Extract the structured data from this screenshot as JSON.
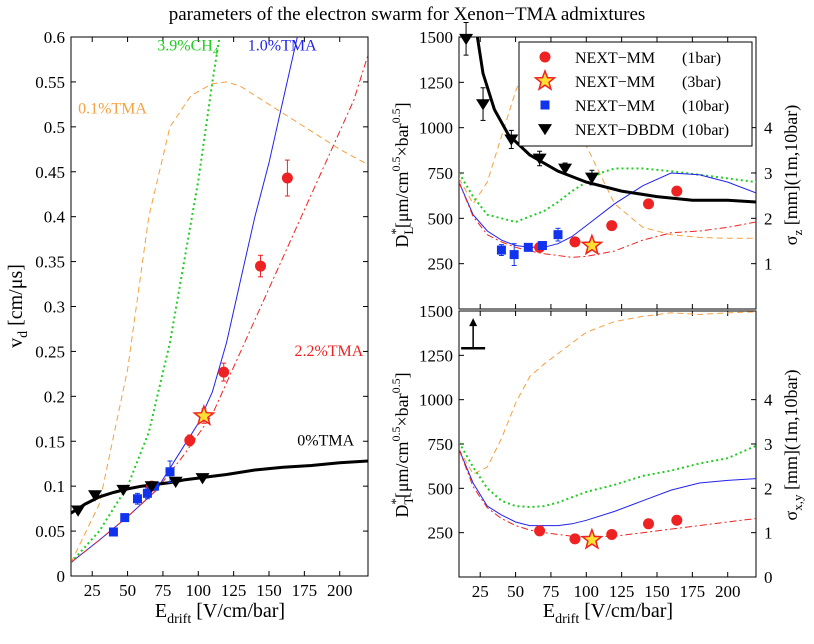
{
  "title": "parameters of the electron swarm for Xenon−TMA admixtures",
  "colors": {
    "tma01": "#f5a142",
    "ch4": "#22cc22",
    "tma10": "#2222ee",
    "tma22": "#ee2222",
    "tma0": "#000000",
    "mm1bar": "#ee2222",
    "mm3bar": "#ee2222",
    "mm3bar_fill": "#ffe033",
    "mm10bar": "#1133ee",
    "dbdm": "#000000"
  },
  "chart_data": [
    {
      "type": "line",
      "id": "vd",
      "xlabel": "E",
      "xlabel_sub": "drift",
      "xlabel_tail": " [V/cm/bar]",
      "ylabel": "v",
      "ylabel_sub": "d",
      "ylabel_tail": " [cm/μs]",
      "xlim": [
        10,
        220
      ],
      "ylim": [
        0,
        0.6
      ],
      "xticks": [
        25,
        50,
        75,
        100,
        125,
        150,
        175,
        200
      ],
      "xtick_labels": [
        "25",
        "50",
        "75",
        "100",
        "125",
        "150",
        "175",
        "200"
      ],
      "yticks": [
        0,
        0.05,
        0.1,
        0.15,
        0.2,
        0.25,
        0.3,
        0.35,
        0.4,
        0.45,
        0.5,
        0.55,
        0.6
      ],
      "ytick_labels": [
        "0",
        "0.05",
        "0.1",
        "0.15",
        "0.2",
        "0.25",
        "0.3",
        "0.35",
        "0.4",
        "0.45",
        "0.5",
        "0.55",
        "0.6"
      ],
      "series": [
        {
          "name": "0.1%TMA",
          "color_key": "tma01",
          "style": "dashed",
          "width": 1,
          "x": [
            10,
            30,
            50,
            65,
            80,
            95,
            110,
            120,
            130,
            150,
            175,
            200,
            220
          ],
          "y": [
            0.015,
            0.08,
            0.23,
            0.4,
            0.5,
            0.535,
            0.548,
            0.55,
            0.545,
            0.525,
            0.5,
            0.475,
            0.458
          ]
        },
        {
          "name": "3.9%CH4",
          "color_key": "ch4",
          "style": "dotted",
          "width": 2,
          "x": [
            10,
            30,
            50,
            65,
            80,
            90,
            100,
            110,
            115
          ],
          "y": [
            0.015,
            0.05,
            0.1,
            0.16,
            0.26,
            0.35,
            0.44,
            0.55,
            0.6
          ]
        },
        {
          "name": "1.0%TMA",
          "color_key": "tma10",
          "style": "solid",
          "width": 1,
          "x": [
            10,
            30,
            50,
            70,
            90,
            100,
            110,
            120,
            130,
            140,
            150,
            160,
            170
          ],
          "y": [
            0.015,
            0.04,
            0.066,
            0.095,
            0.145,
            0.17,
            0.205,
            0.26,
            0.33,
            0.4,
            0.46,
            0.53,
            0.6
          ]
        },
        {
          "name": "2.2%TMA",
          "color_key": "tma22",
          "style": "dashdot",
          "width": 1,
          "x": [
            10,
            30,
            50,
            70,
            90,
            110,
            130,
            150,
            170,
            190,
            210,
            220
          ],
          "y": [
            0.015,
            0.04,
            0.066,
            0.095,
            0.135,
            0.18,
            0.25,
            0.32,
            0.39,
            0.46,
            0.53,
            0.58
          ]
        },
        {
          "name": "0%TMA",
          "color_key": "tma0",
          "style": "solid",
          "width": 3,
          "x": [
            10,
            20,
            30,
            40,
            50,
            60,
            70,
            80,
            90,
            100,
            110,
            120,
            140,
            160,
            180,
            200,
            220
          ],
          "y": [
            0.07,
            0.08,
            0.088,
            0.093,
            0.097,
            0.1,
            0.102,
            0.104,
            0.107,
            0.109,
            0.111,
            0.113,
            0.118,
            0.121,
            0.123,
            0.126,
            0.128
          ]
        }
      ],
      "points": [
        {
          "set": "NEXT-MM (1bar)",
          "marker": "circle",
          "x": [
            67,
            94,
            118,
            144,
            163
          ],
          "y": [
            0.1,
            0.151,
            0.227,
            0.345,
            0.443
          ],
          "err": [
            0.005,
            0.006,
            0.01,
            0.012,
            0.02
          ]
        },
        {
          "set": "NEXT-MM (3bar)",
          "marker": "star",
          "x": [
            104
          ],
          "y": [
            0.178
          ],
          "err": [
            0.008
          ]
        },
        {
          "set": "NEXT-MM (10bar)",
          "marker": "square",
          "x": [
            40,
            48,
            57,
            64,
            69,
            80
          ],
          "y": [
            0.049,
            0.065,
            0.086,
            0.092,
            0.1,
            0.116
          ],
          "err": [
            0,
            0.004,
            0.006,
            0.006,
            0.004,
            0.012
          ]
        },
        {
          "set": "NEXT-DBDM (10bar)",
          "marker": "triangle",
          "x": [
            15,
            27,
            47,
            67,
            84,
            103
          ],
          "y": [
            0.073,
            0.09,
            0.096,
            0.1,
            0.105,
            0.109
          ],
          "err": [
            0,
            0,
            0,
            0,
            0,
            0
          ]
        }
      ],
      "annotations": [
        {
          "text": "3.9%CH",
          "sub": "4",
          "color_key": "ch4",
          "x": 71,
          "y": 0.585
        },
        {
          "text": "1.0%TMA",
          "color_key": "tma10",
          "x": 135,
          "y": 0.585
        },
        {
          "text": "0.1%TMA",
          "color_key": "tma01",
          "x": 15,
          "y": 0.515
        },
        {
          "text": "2.2%TMA",
          "color_key": "tma22",
          "x": 168,
          "y": 0.245
        },
        {
          "text": "0%TMA",
          "color_key": "tma0",
          "x": 170,
          "y": 0.145
        }
      ]
    },
    {
      "type": "line",
      "id": "dl",
      "xlabel": "",
      "ylabel": "D",
      "ylabel_sub": "L",
      "ylabel_sup": "*",
      "ylabel_tail": "[μm/cm",
      "ylabel_sup2": "0.5",
      "ylabel_tail2": "×bar",
      "ylabel_sup3": "0.5",
      "ylabel_tail3": "]",
      "ylabel_right": "σ",
      "ylabel_right_sub": "z",
      "ylabel_right_tail": " [mm](1m,10bar)",
      "xlim": [
        10,
        220
      ],
      "ylim": [
        0,
        1500
      ],
      "xticks": [
        25,
        50,
        75,
        100,
        125,
        150,
        175,
        200
      ],
      "yticks": [
        250,
        500,
        750,
        1000,
        1250,
        1500
      ],
      "ytick_labels": [
        "250",
        "500",
        "750",
        "1000",
        "1250",
        "1500"
      ],
      "yticks_right": [
        0.976,
        1.952,
        2.928,
        3.904
      ],
      "ytick_labels_right": [
        "1",
        "2",
        "3",
        "4"
      ],
      "series": [
        {
          "name": "0.1%TMA",
          "color_key": "tma01",
          "style": "dashed",
          "width": 1,
          "x": [
            10,
            20,
            30,
            40,
            50,
            60,
            70,
            80,
            90,
            100,
            120,
            140,
            160,
            180,
            200,
            220
          ],
          "y": [
            720,
            580,
            700,
            950,
            1200,
            1400,
            1470,
            1420,
            1250,
            900,
            580,
            450,
            410,
            395,
            390,
            390
          ]
        },
        {
          "name": "3.9%CH4",
          "color_key": "ch4",
          "style": "dotted",
          "width": 2,
          "x": [
            10,
            20,
            30,
            40,
            50,
            60,
            70,
            80,
            90,
            100,
            110,
            120,
            140,
            160,
            180,
            200,
            220
          ],
          "y": [
            750,
            620,
            520,
            500,
            480,
            510,
            540,
            590,
            650,
            700,
            750,
            775,
            775,
            760,
            740,
            720,
            700
          ]
        },
        {
          "name": "1.0%TMA",
          "color_key": "tma10",
          "style": "solid",
          "width": 1,
          "x": [
            10,
            20,
            30,
            40,
            50,
            60,
            70,
            80,
            90,
            100,
            120,
            140,
            160,
            180,
            200,
            220
          ],
          "y": [
            700,
            520,
            430,
            380,
            350,
            340,
            340,
            360,
            400,
            460,
            580,
            680,
            750,
            740,
            700,
            640
          ]
        },
        {
          "name": "2.2%TMA",
          "color_key": "tma22",
          "style": "dashdot",
          "width": 1,
          "x": [
            10,
            20,
            30,
            40,
            50,
            60,
            70,
            80,
            90,
            100,
            120,
            140,
            160,
            180,
            200,
            220
          ],
          "y": [
            700,
            510,
            410,
            370,
            340,
            320,
            305,
            295,
            285,
            290,
            320,
            380,
            420,
            430,
            450,
            480
          ]
        },
        {
          "name": "0%TMA",
          "color_key": "tma0",
          "style": "solid",
          "width": 3,
          "x": [
            23,
            27,
            35,
            45,
            60,
            80,
            100,
            125,
            150,
            175,
            200,
            220
          ],
          "y": [
            1500,
            1300,
            1100,
            960,
            850,
            760,
            700,
            650,
            620,
            600,
            600,
            590
          ]
        }
      ],
      "points": [
        {
          "set": "NEXT-MM (1bar)",
          "marker": "circle",
          "x": [
            67,
            92,
            118,
            144,
            164
          ],
          "y": [
            340,
            370,
            460,
            580,
            650
          ],
          "err": [
            0,
            0,
            0,
            0,
            0
          ]
        },
        {
          "set": "NEXT-MM (3bar)",
          "marker": "star",
          "x": [
            104
          ],
          "y": [
            350
          ],
          "err": [
            0
          ]
        },
        {
          "set": "NEXT-MM (10bar)",
          "marker": "square",
          "x": [
            40,
            49,
            59,
            69,
            80
          ],
          "y": [
            325,
            300,
            340,
            350,
            410
          ],
          "err": [
            30,
            60,
            20,
            20,
            35
          ]
        },
        {
          "set": "NEXT-DBDM (10bar)",
          "marker": "triangle",
          "x": [
            15,
            27,
            47,
            67,
            85,
            104
          ],
          "y": [
            1490,
            1130,
            935,
            830,
            775,
            725
          ],
          "err": [
            90,
            90,
            50,
            40,
            30,
            40
          ]
        }
      ],
      "legend": {
        "position": "top-right",
        "entries": [
          {
            "label": "NEXT−MM",
            "pressure": "(1bar)",
            "marker": "circle"
          },
          {
            "label": "NEXT−MM",
            "pressure": "(3bar)",
            "marker": "star"
          },
          {
            "label": "NEXT−MM",
            "pressure": "(10bar)",
            "marker": "square"
          },
          {
            "label": "NEXT−DBDM",
            "pressure": "(10bar)",
            "marker": "triangle"
          }
        ]
      }
    },
    {
      "type": "line",
      "id": "dt",
      "xlabel": "E",
      "xlabel_sub": "drift",
      "xlabel_tail": " [V/cm/bar]",
      "ylabel": "D",
      "ylabel_sub": "T",
      "ylabel_sup": "*",
      "ylabel_tail": "[μm/cm",
      "ylabel_sup2": "0.5",
      "ylabel_tail2": "×bar",
      "ylabel_sup3": "0.5",
      "ylabel_tail3": "]",
      "ylabel_right": "σ",
      "ylabel_right_sub": "x,y",
      "ylabel_right_tail": " [mm](1m,10bar)",
      "xlim": [
        10,
        220
      ],
      "ylim": [
        0,
        1500
      ],
      "xticks": [
        25,
        50,
        75,
        100,
        125,
        150,
        175,
        200
      ],
      "xtick_labels": [
        "25",
        "50",
        "75",
        "100",
        "125",
        "150",
        "175",
        "200"
      ],
      "yticks": [
        250,
        500,
        750,
        1000,
        1250,
        1500
      ],
      "ytick_labels": [
        "250",
        "500",
        "750",
        "1000",
        "1250",
        "1500"
      ],
      "yticks_right": [
        0,
        0.976,
        1.952,
        2.928,
        3.904
      ],
      "ytick_labels_right": [
        "0",
        "1",
        "2",
        "3",
        "4"
      ],
      "series": [
        {
          "name": "0.1%TMA",
          "color_key": "tma01",
          "style": "dashed",
          "width": 1,
          "x": [
            10,
            20,
            30,
            40,
            50,
            60,
            70,
            80,
            90,
            100,
            120,
            140,
            160,
            180,
            200,
            220
          ],
          "y": [
            720,
            580,
            620,
            780,
            980,
            1130,
            1200,
            1260,
            1320,
            1380,
            1440,
            1470,
            1490,
            1480,
            1490,
            1495
          ]
        },
        {
          "name": "3.9%CH4",
          "color_key": "ch4",
          "style": "dotted",
          "width": 2,
          "x": [
            10,
            20,
            30,
            40,
            50,
            60,
            70,
            80,
            90,
            100,
            120,
            140,
            160,
            180,
            200,
            220
          ],
          "y": [
            760,
            620,
            500,
            430,
            400,
            395,
            400,
            420,
            450,
            480,
            520,
            570,
            600,
            640,
            670,
            740
          ]
        },
        {
          "name": "1.0%TMA",
          "color_key": "tma10",
          "style": "solid",
          "width": 1,
          "x": [
            10,
            20,
            30,
            40,
            50,
            60,
            70,
            80,
            90,
            100,
            120,
            140,
            160,
            180,
            200,
            220
          ],
          "y": [
            720,
            530,
            400,
            350,
            310,
            290,
            290,
            290,
            300,
            320,
            370,
            430,
            490,
            530,
            545,
            555
          ]
        },
        {
          "name": "2.2%TMA",
          "color_key": "tma22",
          "style": "dashdot",
          "width": 1,
          "x": [
            10,
            20,
            30,
            40,
            50,
            60,
            70,
            80,
            90,
            100,
            120,
            140,
            160,
            180,
            200,
            220
          ],
          "y": [
            720,
            510,
            390,
            330,
            290,
            265,
            250,
            240,
            230,
            225,
            230,
            250,
            270,
            290,
            310,
            330
          ]
        }
      ],
      "points": [
        {
          "set": "NEXT-MM (1bar)",
          "marker": "circle",
          "x": [
            67,
            92,
            118,
            144,
            164
          ],
          "y": [
            260,
            215,
            240,
            300,
            320
          ],
          "err": [
            0,
            0,
            0,
            0,
            0
          ]
        },
        {
          "set": "NEXT-MM (3bar)",
          "marker": "star",
          "x": [
            104
          ],
          "y": [
            210
          ],
          "err": [
            0
          ]
        }
      ],
      "arrow": {
        "x": 20,
        "y_from": 1290,
        "y_to": 1460
      }
    }
  ]
}
